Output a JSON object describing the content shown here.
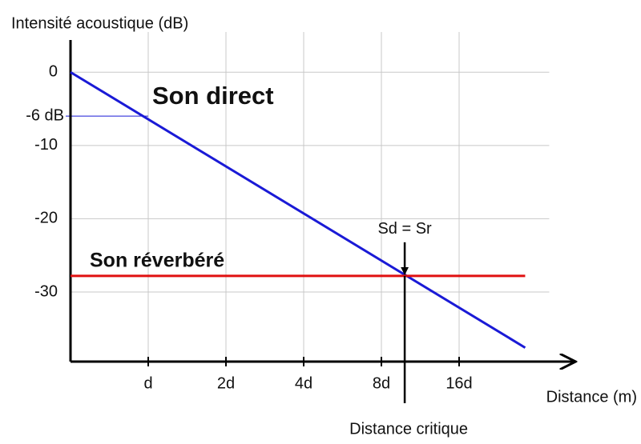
{
  "chart_data": {
    "type": "line",
    "y_label": "Intensité acoustique (dB)",
    "x_label": "Distance (m)",
    "xlim": [
      0,
      6.5
    ],
    "ylim": [
      -39.5,
      3.3
    ],
    "xticks": [
      {
        "value": 1,
        "label": "d"
      },
      {
        "value": 2,
        "label": "2d"
      },
      {
        "value": 3,
        "label": "4d"
      },
      {
        "value": 4,
        "label": "8d"
      },
      {
        "value": 5,
        "label": "16d"
      }
    ],
    "yticks": [
      0,
      -10,
      -20,
      -30
    ],
    "grid": true,
    "series": [
      {
        "name": "Son direct",
        "color": "#1a1ad6",
        "x": [
          0,
          5.85
        ],
        "values": [
          0,
          -37.6
        ]
      },
      {
        "name": "Son réverbéré",
        "color": "#e01010",
        "x": [
          0,
          5.85
        ],
        "values": [
          -27.8,
          -27.8
        ]
      }
    ],
    "annotations": [
      {
        "text": "-6 dB",
        "y": -6
      },
      {
        "text": "Sd = Sr",
        "x": 4.3,
        "y": -27.8
      },
      {
        "text": "Distance critique",
        "x": 4.3
      }
    ]
  }
}
